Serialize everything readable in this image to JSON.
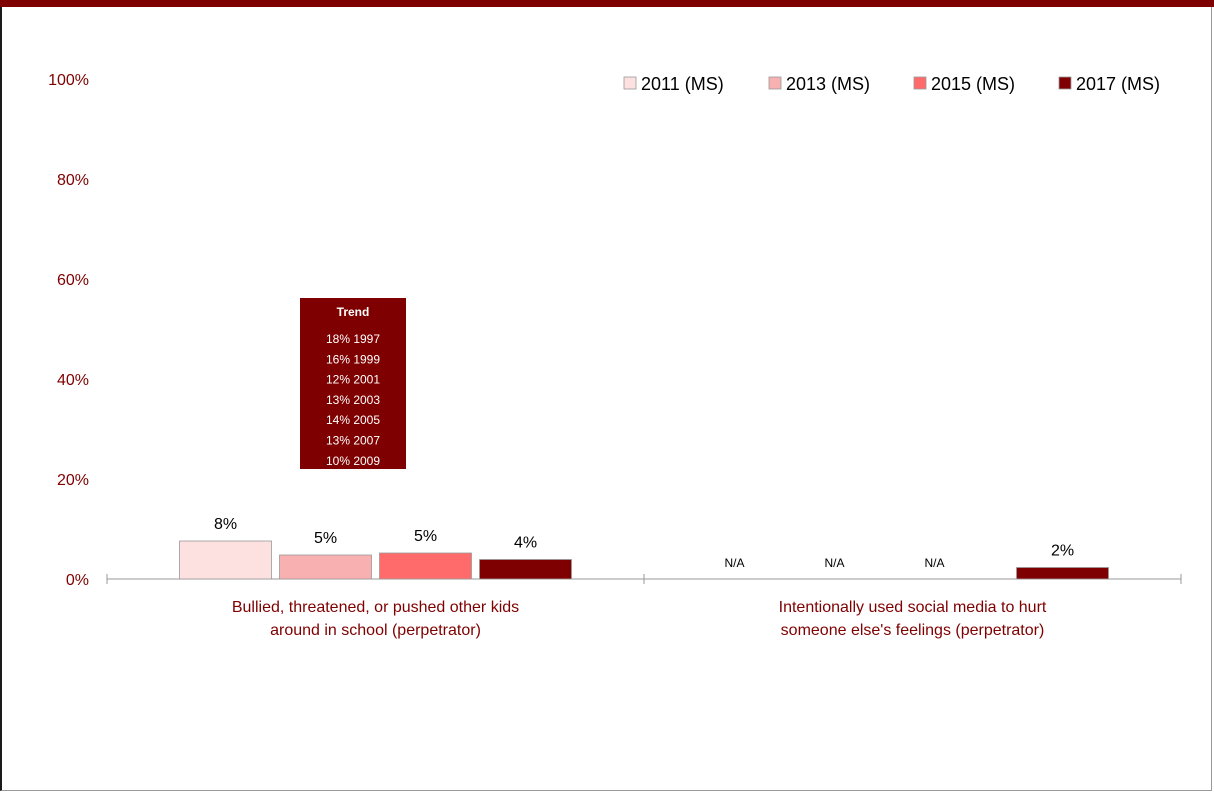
{
  "chart_data": {
    "type": "bar",
    "categories": [
      [
        "Bullied, threatened, or pushed other kids",
        "around in school  (perpetrator)"
      ],
      [
        "Intentionally used social media to hurt",
        "someone else's feelings (perpetrator)"
      ]
    ],
    "series": [
      {
        "name": "2011 (MS)",
        "color": "#fde0e0",
        "values": [
          7.6,
          null
        ],
        "labels": [
          "8%",
          "N/A"
        ]
      },
      {
        "name": "2013 (MS)",
        "color": "#f9b0b0",
        "values": [
          4.8,
          null
        ],
        "labels": [
          "5%",
          "N/A"
        ]
      },
      {
        "name": "2015 (MS)",
        "color": "#ff6b6b",
        "values": [
          5.2,
          null
        ],
        "labels": [
          "5%",
          "N/A"
        ]
      },
      {
        "name": "2017 (MS)",
        "color": "#7f0000",
        "values": [
          3.9,
          2.3
        ],
        "labels": [
          "4%",
          "2%"
        ]
      }
    ],
    "yticks": [
      "0%",
      "20%",
      "40%",
      "60%",
      "80%",
      "100%"
    ],
    "ylim": [
      0,
      100
    ],
    "legend_position": "top-right",
    "grid": false,
    "trend_box": {
      "title": "Trend",
      "lines": [
        "18% 1997",
        "16% 1999",
        "12% 2001",
        "13% 2003",
        "14% 2005",
        "13% 2007",
        "10% 2009"
      ],
      "color": "#7f0000"
    }
  }
}
